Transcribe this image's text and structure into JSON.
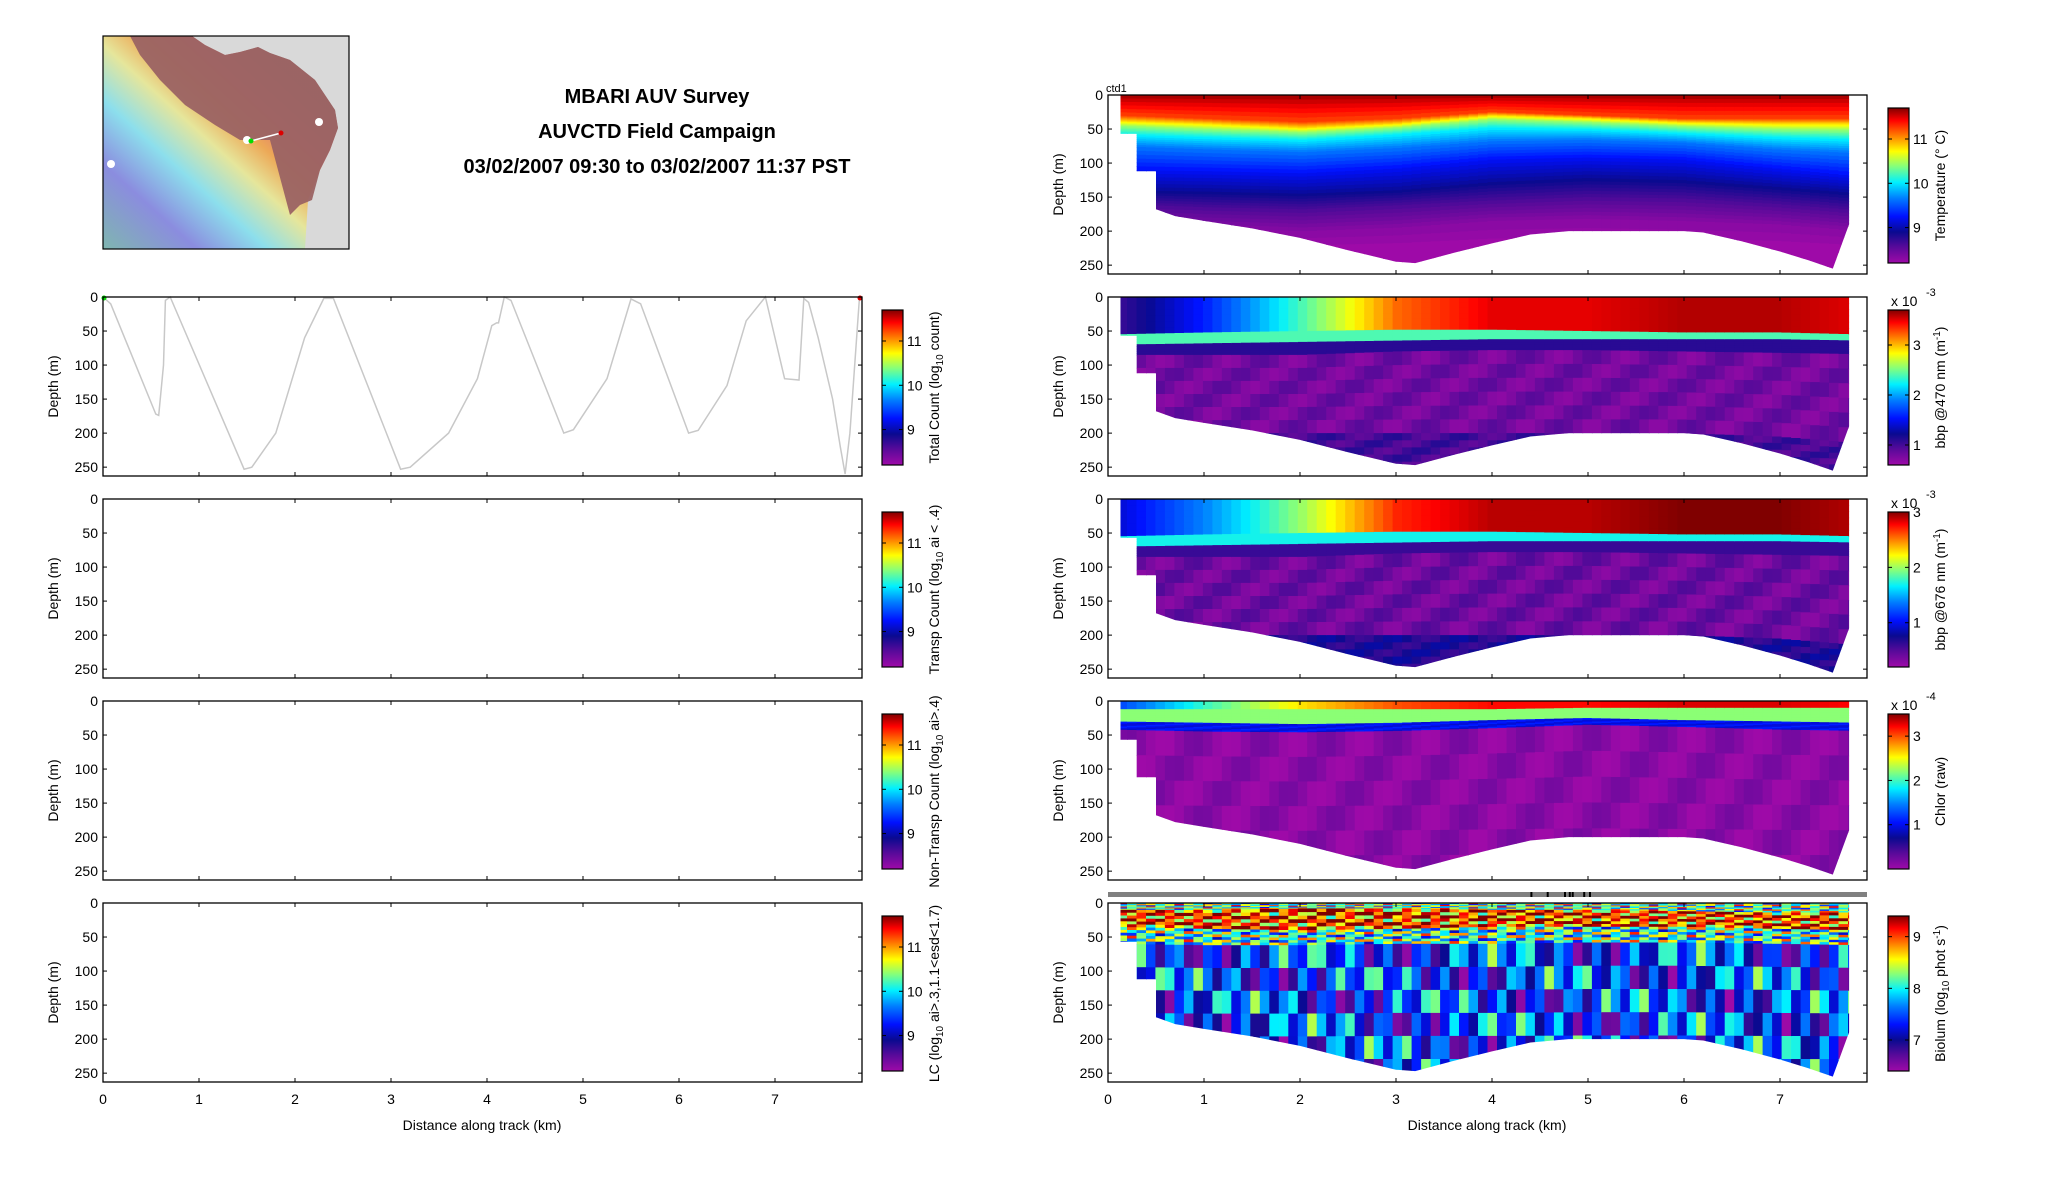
{
  "header": {
    "title_line1": "MBARI AUV Survey",
    "title_line2": "AUVCTD Field Campaign",
    "title_line3": "03/02/2007 09:30 to 03/02/2007 11:37 PST"
  },
  "map": {
    "land_color": "#d9d9d9",
    "shelf_color": "#9b6363",
    "track_start_color": "#00dd00",
    "track_end_color": "#dd0000"
  },
  "axes": {
    "xlabel": "Distance along track (km)",
    "ylabel": "Depth (m)",
    "xticks": [
      "0",
      "1",
      "2",
      "3",
      "4",
      "5",
      "6",
      "7"
    ],
    "yticks": [
      "0",
      "50",
      "100",
      "150",
      "200",
      "250"
    ],
    "xlim": [
      0,
      7.9
    ],
    "ylim": [
      0,
      263
    ]
  },
  "chart_data": [
    {
      "type": "line",
      "panel": "total_count",
      "title": "",
      "xlabel": "",
      "ylabel": "Depth (m)",
      "colorbar_label": "Total Count (log10 count)",
      "colorbar_label_main": "Total Count (log",
      "colorbar_label_sub": "10",
      "colorbar_label_end": " count)",
      "colorbar_ticks": [
        "9",
        "10",
        "11"
      ],
      "colorbar_range": [
        8.2,
        11.7
      ],
      "track": {
        "x": [
          0,
          0.08,
          0.55,
          0.58,
          0.63,
          0.65,
          0.7,
          1.47,
          1.55,
          1.8,
          2.1,
          2.3,
          2.4,
          3.1,
          3.2,
          3.6,
          3.9,
          4.05,
          4.1,
          4.12,
          4.18,
          4.25,
          4.8,
          4.9,
          5.25,
          5.5,
          5.6,
          6.1,
          6.2,
          6.5,
          6.7,
          6.9,
          7.1,
          7.25,
          7.3,
          7.35,
          7.45,
          7.6,
          7.68,
          7.73,
          7.78,
          7.88
        ],
        "y": [
          0,
          10,
          172,
          174,
          100,
          5,
          0,
          253,
          250,
          200,
          60,
          2,
          2,
          253,
          250,
          200,
          120,
          42,
          38,
          38,
          0,
          5,
          200,
          195,
          120,
          3,
          10,
          200,
          196,
          130,
          35,
          0,
          120,
          122,
          2,
          8,
          60,
          150,
          220,
          260,
          200,
          0
        ]
      }
    },
    {
      "type": "line",
      "panel": "transp_count",
      "colorbar_label_main": "Transp Count (log",
      "colorbar_label_sub": "10",
      "colorbar_label_end": " ai < .4)",
      "colorbar_ticks": [
        "9",
        "10",
        "11"
      ],
      "colorbar_range": [
        8.2,
        11.7
      ]
    },
    {
      "type": "line",
      "panel": "non_transp_count",
      "colorbar_label_main": "Non-Transp Count (log",
      "colorbar_label_sub": "10",
      "colorbar_label_end": " ai>.4)",
      "colorbar_ticks": [
        "9",
        "10",
        "11"
      ],
      "colorbar_range": [
        8.2,
        11.7
      ]
    },
    {
      "type": "line",
      "panel": "lc",
      "colorbar_label_main": "LC (log",
      "colorbar_label_sub": "10",
      "colorbar_label_end": " ai>.3,1.1<esd<1.7)",
      "colorbar_ticks": [
        "9",
        "10",
        "11"
      ],
      "colorbar_range": [
        8.2,
        11.7
      ]
    },
    {
      "type": "heatmap",
      "panel": "temperature",
      "annotation": "ctd1",
      "colorbar_label_main": "Temperature (° C)",
      "colorbar_label_sub": "",
      "colorbar_label_end": "",
      "colorbar_ticks": [
        "9",
        "10",
        "11"
      ],
      "colorbar_range": [
        8.2,
        11.7
      ],
      "exponent": "",
      "profile": {
        "x": [
          0,
          1,
          2,
          3,
          4,
          5,
          6,
          7,
          7.9
        ],
        "layers": [
          {
            "value": 11.6,
            "top": [
              0,
              0,
              0,
              0,
              0,
              0,
              0,
              0,
              0
            ]
          },
          {
            "value": 11.2,
            "top": [
              30,
              35,
              40,
              35,
              25,
              30,
              35,
              35,
              35
            ]
          },
          {
            "value": 10.8,
            "top": [
              38,
              42,
              48,
              42,
              30,
              34,
              40,
              42,
              42
            ]
          },
          {
            "value": 10.4,
            "top": [
              45,
              50,
              55,
              48,
              36,
              40,
              46,
              50,
              52
            ]
          },
          {
            "value": 10.0,
            "top": [
              58,
              62,
              66,
              58,
              48,
              50,
              56,
              62,
              66
            ]
          },
          {
            "value": 9.6,
            "top": [
              75,
              80,
              84,
              78,
              68,
              66,
              70,
              80,
              86
            ]
          },
          {
            "value": 9.2,
            "top": [
              110,
              112,
              115,
              108,
              95,
              92,
              95,
              108,
              120
            ]
          },
          {
            "value": 8.9,
            "top": [
              140,
              142,
              145,
              140,
              128,
              122,
              125,
              135,
              145
            ]
          },
          {
            "value": 8.6,
            "top": [
              160,
              165,
              168,
              162,
              155,
              150,
              152,
              160,
              170
            ]
          },
          {
            "value": 8.3,
            "top": [
              190,
              195,
              200,
              195,
              185,
              182,
              185,
              190,
              200
            ]
          }
        ]
      }
    },
    {
      "type": "heatmap",
      "panel": "bbp470",
      "colorbar_label_main": "bbp @470 nm (m",
      "colorbar_label_sub": "-1",
      "colorbar_label_end": ")",
      "colorbar_ticks": [
        "1",
        "2",
        "3"
      ],
      "colorbar_range": [
        0.6,
        3.7
      ],
      "exponent": "x 10",
      "exponent_power": "-3",
      "profile": {
        "x": [
          0,
          1,
          2,
          3,
          4,
          5,
          6,
          7,
          7.9
        ],
        "layers": [
          {
            "value": 1.3,
            "top": [
              0,
              0,
              0,
              0,
              0,
              0,
              0,
              0,
              0
            ],
            "surface": [
              1.0,
              1.6,
              2.4,
              3.2,
              3.5,
              3.5,
              3.6,
              3.6,
              3.5
            ]
          },
          {
            "value": 2.4,
            "top": [
              55,
              52,
              50,
              48,
              48,
              50,
              52,
              52,
              55
            ]
          },
          {
            "value": 1.1,
            "top": [
              70,
              68,
              66,
              64,
              62,
              62,
              62,
              62,
              64
            ]
          },
          {
            "value": 0.8,
            "top": [
              85,
              85,
              85,
              80,
              78,
              78,
              80,
              82,
              84
            ]
          },
          {
            "value": 1.0,
            "top": [
              200,
              200,
              200,
              200,
              200,
              200,
              200,
              205,
              215
            ]
          }
        ]
      }
    },
    {
      "type": "heatmap",
      "panel": "bbp676",
      "colorbar_label_main": "bbp @676 nm (m",
      "colorbar_label_sub": "-1",
      "colorbar_label_end": ")",
      "colorbar_ticks": [
        "1",
        "2",
        "3"
      ],
      "colorbar_range": [
        0.2,
        3.0
      ],
      "exponent": "x 10",
      "exponent_power": "-3",
      "profile": {
        "x": [
          0,
          1,
          2,
          3,
          4,
          5,
          6,
          7,
          7.9
        ],
        "layers": [
          {
            "value": 1.0,
            "top": [
              0,
              0,
              0,
              0,
              0,
              0,
              0,
              0,
              0
            ],
            "surface": [
              0.9,
              1.4,
              2.0,
              2.7,
              2.9,
              2.9,
              3.0,
              3.0,
              2.9
            ]
          },
          {
            "value": 1.7,
            "top": [
              55,
              52,
              50,
              48,
              48,
              50,
              52,
              52,
              55
            ]
          },
          {
            "value": 0.6,
            "top": [
              70,
              68,
              66,
              64,
              62,
              62,
              62,
              62,
              64
            ]
          },
          {
            "value": 0.4,
            "top": [
              85,
              85,
              85,
              80,
              78,
              78,
              80,
              82,
              84
            ]
          },
          {
            "value": 0.7,
            "top": [
              200,
              200,
              200,
              200,
              200,
              200,
              200,
              205,
              215
            ]
          }
        ]
      }
    },
    {
      "type": "heatmap",
      "panel": "chlor",
      "colorbar_label_main": "Chlor (raw)",
      "colorbar_label_sub": "",
      "colorbar_label_end": "",
      "colorbar_ticks": [
        "1",
        "2",
        "3"
      ],
      "colorbar_range": [
        0.0,
        3.5
      ],
      "exponent": "x 10",
      "exponent_power": "-4",
      "profile": {
        "x": [
          0,
          1,
          2,
          3,
          4,
          5,
          6,
          7,
          7.9
        ],
        "layers": [
          {
            "value": 1.4,
            "top": [
              0,
              0,
              0,
              0,
              0,
              0,
              0,
              0,
              0
            ],
            "surface": [
              1.2,
              2.0,
              2.6,
              3.0,
              3.2,
              3.2,
              3.3,
              3.3,
              3.2
            ]
          },
          {
            "value": 2.2,
            "top": [
              12,
              12,
              12,
              12,
              12,
              10,
              10,
              10,
              10
            ]
          },
          {
            "value": 1.0,
            "top": [
              30,
              32,
              34,
              32,
              28,
              25,
              28,
              30,
              32
            ]
          },
          {
            "value": 0.1,
            "top": [
              42,
              45,
              46,
              44,
              40,
              35,
              38,
              42,
              44
            ]
          }
        ]
      }
    },
    {
      "type": "heatmap",
      "panel": "biolum",
      "colorbar_label_main": "Biolum (log",
      "colorbar_label_sub": "10",
      "colorbar_label_end": " phot s",
      "colorbar_label_sup": "-1",
      "colorbar_label_close": ")",
      "colorbar_ticks": [
        "7",
        "8",
        "9"
      ],
      "colorbar_range": [
        6.4,
        9.4
      ],
      "exponent": "",
      "profile": {
        "x": [
          0,
          1,
          2,
          3,
          4,
          5,
          6,
          7,
          7.9
        ],
        "layers": [
          {
            "value": 8.2,
            "top": [
              0,
              0,
              0,
              0,
              0,
              0,
              0,
              0,
              0
            ]
          },
          {
            "value": 9.0,
            "top": [
              10,
              10,
              8,
              8,
              10,
              10,
              12,
              14,
              14
            ]
          },
          {
            "value": 8.1,
            "top": [
              35,
              38,
              40,
              38,
              35,
              35,
              35,
              38,
              40
            ]
          },
          {
            "value": 7.4,
            "top": [
              60,
              62,
              62,
              60,
              60,
              58,
              58,
              60,
              62
            ]
          }
        ]
      }
    }
  ],
  "bottom_profile": {
    "x": [
      0.13,
      0.3,
      0.3,
      0.5,
      0.5,
      0.7,
      1.0,
      1.5,
      2.0,
      2.5,
      3.0,
      3.2,
      3.6,
      4.0,
      4.4,
      4.8,
      5.3,
      6.0,
      6.2,
      6.6,
      7.0,
      7.3,
      7.55,
      7.55,
      7.72,
      7.72
    ],
    "depth": [
      57,
      57,
      112,
      112,
      168,
      178,
      185,
      196,
      210,
      228,
      245,
      247,
      232,
      218,
      205,
      200,
      200,
      200,
      202,
      215,
      230,
      243,
      255,
      255,
      190,
      0
    ]
  },
  "biolum_marks": {
    "x_km": [
      4.4,
      4.57,
      4.75,
      4.8,
      4.83,
      4.95,
      5.01
    ]
  }
}
